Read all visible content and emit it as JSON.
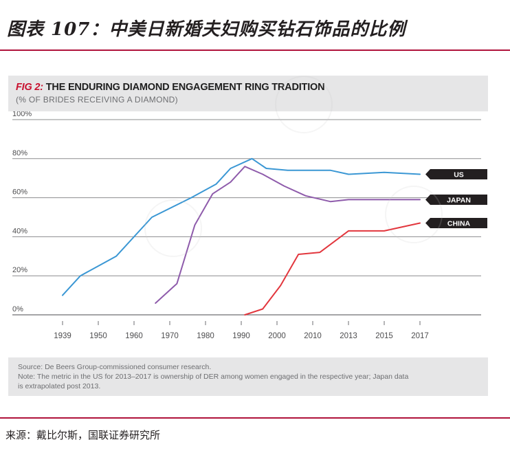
{
  "page": {
    "title": "图表 107：中美日新婚夫妇购买钻石饰品的比例",
    "source": "来源：戴比尔斯，国联证券研究所"
  },
  "figure": {
    "label": "FIG 2:",
    "heading": "THE ENDURING DIAMOND ENGAGEMENT RING TRADITION",
    "subtitle": "(% OF BRIDES RECEIVING A DIAMOND)",
    "notes": [
      "Source: De Beers Group-commissioned consumer research.",
      "Note: The metric in the US for 2013–2017 is ownership of DER among women engaged in the respective year; Japan data",
      "is extrapolated post 2013."
    ]
  },
  "chart_data": {
    "type": "line",
    "title": "THE ENDURING DIAMOND ENGAGEMENT RING TRADITION",
    "subtitle": "(% OF BRIDES RECEIVING A DIAMOND)",
    "xlabel": "",
    "ylabel": "",
    "y_tick_labels": [
      "0%",
      "20%",
      "40%",
      "60%",
      "80%",
      "100%"
    ],
    "ylim": [
      0,
      100
    ],
    "x_tick_labels": [
      "1939",
      "1950",
      "1960",
      "1970",
      "1980",
      "1990",
      "2000",
      "2010",
      "2013",
      "2015",
      "2017"
    ],
    "grid": true,
    "legend": "line-end labels on right",
    "series": [
      {
        "name": "US",
        "color": "#3a97d4",
        "points": [
          {
            "x": 0,
            "y": 10
          },
          {
            "x": 0.5,
            "y": 20
          },
          {
            "x": 1,
            "y": 25
          },
          {
            "x": 1.5,
            "y": 30
          },
          {
            "x": 2.5,
            "y": 50
          },
          {
            "x": 3.6,
            "y": 60
          },
          {
            "x": 4.3,
            "y": 67
          },
          {
            "x": 4.7,
            "y": 75
          },
          {
            "x": 5.3,
            "y": 80
          },
          {
            "x": 5.7,
            "y": 75
          },
          {
            "x": 6.3,
            "y": 74
          },
          {
            "x": 7,
            "y": 74
          },
          {
            "x": 7.5,
            "y": 74
          },
          {
            "x": 8,
            "y": 72
          },
          {
            "x": 9,
            "y": 73
          },
          {
            "x": 10,
            "y": 72
          }
        ]
      },
      {
        "name": "JAPAN",
        "color": "#8e5bab",
        "points": [
          {
            "x": 2.6,
            "y": 6
          },
          {
            "x": 3.2,
            "y": 16
          },
          {
            "x": 3.7,
            "y": 46
          },
          {
            "x": 4.2,
            "y": 62
          },
          {
            "x": 4.7,
            "y": 68
          },
          {
            "x": 5.1,
            "y": 76
          },
          {
            "x": 5.6,
            "y": 72
          },
          {
            "x": 6.2,
            "y": 66
          },
          {
            "x": 6.8,
            "y": 61
          },
          {
            "x": 7.5,
            "y": 58
          },
          {
            "x": 8,
            "y": 59
          },
          {
            "x": 9,
            "y": 59
          },
          {
            "x": 10,
            "y": 59
          }
        ]
      },
      {
        "name": "CHINA",
        "color": "#e2363d",
        "points": [
          {
            "x": 5.1,
            "y": 0
          },
          {
            "x": 5.6,
            "y": 3
          },
          {
            "x": 6.1,
            "y": 15
          },
          {
            "x": 6.6,
            "y": 31
          },
          {
            "x": 7.2,
            "y": 32
          },
          {
            "x": 8,
            "y": 43
          },
          {
            "x": 9,
            "y": 43
          },
          {
            "x": 10,
            "y": 47
          }
        ]
      }
    ],
    "colors": {
      "grid": "#8b8c8e",
      "axis_text": "#4d4d4f",
      "label_bg": "#231f20",
      "label_text": "#ffffff"
    }
  }
}
